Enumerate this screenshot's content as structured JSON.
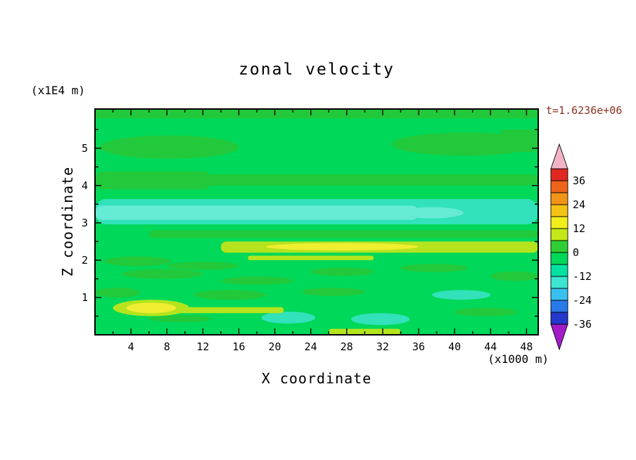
{
  "chart_data": {
    "type": "filled_contour",
    "title": "zonal velocity",
    "time_annotation": "t=1.6236e+06",
    "x_axis": {
      "label": "X coordinate",
      "unit": "(x1000 m)",
      "range": [
        0,
        49.3
      ],
      "major_ticks": [
        4,
        8,
        12,
        16,
        20,
        24,
        28,
        32,
        36,
        40,
        44,
        48
      ],
      "minor_ticks": [
        2,
        6,
        10,
        14,
        18,
        22,
        26,
        30,
        34,
        38,
        42,
        46
      ]
    },
    "y_axis": {
      "label": "Z coordinate",
      "unit": "(x1E4 m)",
      "range": [
        0,
        6.05
      ],
      "major_ticks": [
        1,
        2,
        3,
        4,
        5
      ],
      "minor_ticks": [
        0.5,
        1.5,
        2.5,
        3.5,
        4.5,
        5.5
      ]
    },
    "grid": false,
    "legend_position": "right",
    "contour_level_step": 6,
    "colorbar": {
      "labels": [
        36,
        24,
        12,
        0,
        -12,
        -24,
        -36
      ],
      "top_value": 42,
      "bottom_value": -36,
      "segment_value_size": 6,
      "arrow_top_color": "#f2b4c4",
      "arrow_bottom_color": "#a21cc8",
      "segments": [
        {
          "range": [
            36,
            42
          ],
          "color": "#e02820"
        },
        {
          "range": [
            30,
            36
          ],
          "color": "#ee6418"
        },
        {
          "range": [
            24,
            30
          ],
          "color": "#f29418"
        },
        {
          "range": [
            18,
            24
          ],
          "color": "#f4c414"
        },
        {
          "range": [
            12,
            18
          ],
          "color": "#f2ee1c"
        },
        {
          "range": [
            6,
            12
          ],
          "color": "#c2e818"
        },
        {
          "range": [
            0,
            6
          ],
          "color": "#2fce32"
        },
        {
          "range": [
            -6,
            0
          ],
          "color": "#00d859"
        },
        {
          "range": [
            -12,
            -6
          ],
          "color": "#00e2a2"
        },
        {
          "range": [
            -18,
            -12
          ],
          "color": "#3ce6d0"
        },
        {
          "range": [
            -24,
            -18
          ],
          "color": "#38c1f0"
        },
        {
          "range": [
            -30,
            -24
          ],
          "color": "#2979ea"
        },
        {
          "range": [
            -36,
            -30
          ],
          "color": "#2638cc"
        }
      ]
    },
    "palette": {
      "green1": "#00d859",
      "green2": "#22c93a",
      "cyan": "#32e2ba",
      "cyan2": "#66ebd5",
      "yellow_green": "#b5e41e",
      "yellow": "#efee30"
    },
    "features": [
      {
        "shape": "rect",
        "x": [
          0,
          49.3
        ],
        "z": [
          5.8,
          6.05
        ],
        "color": "green2",
        "r": 6
      },
      {
        "shape": "ellipse",
        "x": [
          0.5,
          16
        ],
        "z": [
          4.72,
          5.34
        ],
        "color": "green2"
      },
      {
        "shape": "ellipse",
        "x": [
          33,
          49.3
        ],
        "z": [
          4.8,
          5.42
        ],
        "color": "green2"
      },
      {
        "shape": "rect",
        "x": [
          45,
          49.3
        ],
        "z": [
          4.9,
          5.5
        ],
        "color": "green2",
        "r": 8
      },
      {
        "shape": "rect",
        "x": [
          0,
          13
        ],
        "z": [
          3.9,
          4.38
        ],
        "color": "green2",
        "r": 12
      },
      {
        "shape": "rect",
        "x": [
          10,
          49.3
        ],
        "z": [
          4.0,
          4.3
        ],
        "color": "green2",
        "r": 9
      },
      {
        "shape": "rect",
        "x": [
          0,
          49.3
        ],
        "z": [
          2.96,
          3.64
        ],
        "color": "cyan",
        "r": 16
      },
      {
        "shape": "rect",
        "x": [
          0,
          36
        ],
        "z": [
          3.08,
          3.46
        ],
        "color": "cyan2",
        "r": 11
      },
      {
        "shape": "ellipse",
        "x": [
          34,
          41
        ],
        "z": [
          3.12,
          3.42
        ],
        "color": "cyan2"
      },
      {
        "shape": "rect",
        "x": [
          6,
          49.3
        ],
        "z": [
          2.6,
          2.8
        ],
        "color": "green2",
        "r": 7
      },
      {
        "shape": "rect",
        "x": [
          14,
          49.3
        ],
        "z": [
          2.2,
          2.5
        ],
        "color": "yellow_green",
        "r": 9
      },
      {
        "shape": "ellipse",
        "x": [
          19,
          36
        ],
        "z": [
          2.26,
          2.46
        ],
        "color": "yellow"
      },
      {
        "shape": "rect",
        "x": [
          17,
          31
        ],
        "z": [
          2.0,
          2.12
        ],
        "color": "yellow_green",
        "r": 5
      },
      {
        "shape": "ellipse",
        "x": [
          1,
          8.5
        ],
        "z": [
          1.84,
          2.1
        ],
        "color": "green2"
      },
      {
        "shape": "ellipse",
        "x": [
          3,
          12
        ],
        "z": [
          1.5,
          1.76
        ],
        "color": "green2"
      },
      {
        "shape": "ellipse",
        "x": [
          8,
          16
        ],
        "z": [
          1.74,
          1.96
        ],
        "color": "green2"
      },
      {
        "shape": "ellipse",
        "x": [
          0,
          5
        ],
        "z": [
          1.0,
          1.26
        ],
        "color": "green2"
      },
      {
        "shape": "ellipse",
        "x": [
          11,
          19
        ],
        "z": [
          0.94,
          1.2
        ],
        "color": "green2"
      },
      {
        "shape": "ellipse",
        "x": [
          14,
          22
        ],
        "z": [
          1.34,
          1.56
        ],
        "color": "green2"
      },
      {
        "shape": "ellipse",
        "x": [
          24,
          31
        ],
        "z": [
          1.58,
          1.8
        ],
        "color": "green2"
      },
      {
        "shape": "ellipse",
        "x": [
          34,
          41.5
        ],
        "z": [
          1.68,
          1.9
        ],
        "color": "green2"
      },
      {
        "shape": "ellipse",
        "x": [
          44,
          49.3
        ],
        "z": [
          1.44,
          1.7
        ],
        "color": "green2"
      },
      {
        "shape": "ellipse",
        "x": [
          23,
          30
        ],
        "z": [
          1.04,
          1.26
        ],
        "color": "green2"
      },
      {
        "shape": "ellipse",
        "x": [
          6,
          13
        ],
        "z": [
          0.34,
          0.52
        ],
        "color": "green2"
      },
      {
        "shape": "ellipse",
        "x": [
          40,
          47
        ],
        "z": [
          0.5,
          0.72
        ],
        "color": "green2"
      },
      {
        "shape": "ellipse",
        "x": [
          37.5,
          44
        ],
        "z": [
          0.94,
          1.2
        ],
        "color": "cyan"
      },
      {
        "shape": "ellipse",
        "x": [
          18.5,
          24.5
        ],
        "z": [
          0.3,
          0.62
        ],
        "color": "cyan"
      },
      {
        "shape": "ellipse",
        "x": [
          28.5,
          35
        ],
        "z": [
          0.26,
          0.58
        ],
        "color": "cyan"
      },
      {
        "shape": "ellipse",
        "x": [
          2,
          10.5
        ],
        "z": [
          0.5,
          0.94
        ],
        "color": "yellow_green"
      },
      {
        "shape": "ellipse",
        "x": [
          3.5,
          9
        ],
        "z": [
          0.58,
          0.86
        ],
        "color": "yellow"
      },
      {
        "shape": "rect",
        "x": [
          9,
          21
        ],
        "z": [
          0.58,
          0.74
        ],
        "color": "yellow_green",
        "r": 5
      },
      {
        "shape": "rect",
        "x": [
          26,
          34
        ],
        "z": [
          0,
          0.16
        ],
        "color": "yellow_green",
        "r": 5
      }
    ]
  }
}
